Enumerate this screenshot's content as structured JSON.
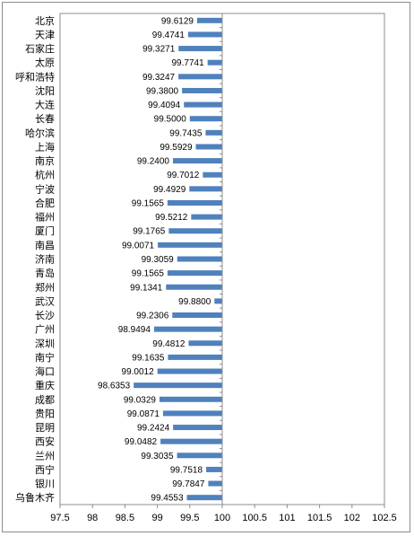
{
  "chart_data": {
    "type": "bar",
    "orientation": "horizontal",
    "title": "",
    "xlabel": "",
    "ylabel": "",
    "categories": [
      "北京",
      "天津",
      "石家庄",
      "太原",
      "呼和浩特",
      "沈阳",
      "大连",
      "长春",
      "哈尔滨",
      "上海",
      "南京",
      "杭州",
      "宁波",
      "合肥",
      "福州",
      "厦门",
      "南昌",
      "济南",
      "青岛",
      "郑州",
      "武汉",
      "长沙",
      "广州",
      "深圳",
      "南宁",
      "海口",
      "重庆",
      "成都",
      "贵阳",
      "昆明",
      "西安",
      "兰州",
      "西宁",
      "银川",
      "乌鲁木齐"
    ],
    "values": [
      99.6129,
      99.4741,
      99.3271,
      99.7741,
      99.3247,
      99.38,
      99.4094,
      99.5,
      99.7435,
      99.5929,
      99.24,
      99.7012,
      99.4929,
      99.1565,
      99.5212,
      99.1765,
      99.0071,
      99.3059,
      99.1565,
      99.1341,
      99.88,
      99.2306,
      98.9494,
      99.4812,
      99.1635,
      99.0012,
      98.6353,
      99.0329,
      99.0871,
      99.2424,
      99.0482,
      99.3035,
      99.7518,
      99.7847,
      99.4553
    ],
    "value_labels": [
      "99.6129",
      "99.4741",
      "99.3271",
      "99.7741",
      "99.3247",
      "99.3800",
      "99.4094",
      "99.5000",
      "99.7435",
      "99.5929",
      "99.2400",
      "99.7012",
      "99.4929",
      "99.1565",
      "99.5212",
      "99.1765",
      "99.0071",
      "99.3059",
      "99.1565",
      "99.1341",
      "99.8800",
      "99.2306",
      "98.9494",
      "99.4812",
      "99.1635",
      "99.0012",
      "98.6353",
      "99.0329",
      "99.0871",
      "99.2424",
      "99.0482",
      "99.3035",
      "99.7518",
      "99.7847",
      "99.4553"
    ],
    "xlim": [
      97.5,
      102.5
    ],
    "xticks": [
      "97.5",
      "98",
      "98.5",
      "99",
      "99.5",
      "100",
      "100.5",
      "101",
      "101.5",
      "102",
      "102.5"
    ],
    "baseline": 100,
    "bar_color": "#4f81bd",
    "grid": false,
    "legend": "none"
  }
}
